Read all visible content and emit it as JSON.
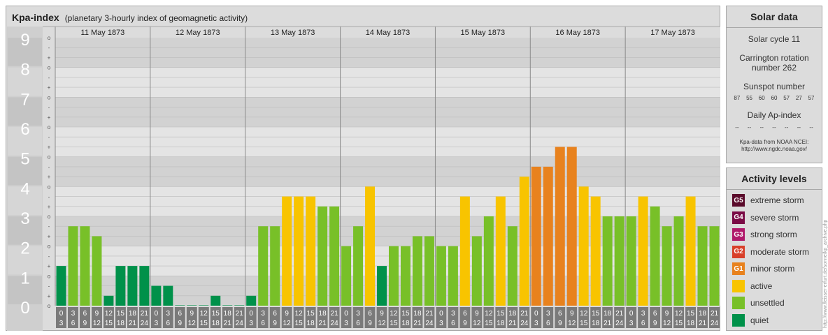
{
  "header": {
    "title": "Kpa-index",
    "subtitle": "(planetary 3-hourly index of geomagnetic activity)"
  },
  "chart_data": {
    "type": "bar",
    "title": "Kpa-index",
    "subtitle": "(planetary 3-hourly index of geomagnetic activity)",
    "y_ticks": [
      "0",
      "1",
      "2",
      "3",
      "4",
      "5",
      "6",
      "7",
      "8",
      "9"
    ],
    "y_minor_ticks": [
      "o",
      "+",
      "-"
    ],
    "ylim": [
      0,
      9
    ],
    "days": [
      "11 May 1873",
      "12 May 1873",
      "13 May 1873",
      "14 May 1873",
      "15 May 1873",
      "16 May 1873",
      "17 May 1873"
    ],
    "hour_starts": [
      "0",
      "3",
      "6",
      "9",
      "12",
      "15",
      "18",
      "21"
    ],
    "hour_ends": [
      "3",
      "6",
      "9",
      "12",
      "15",
      "18",
      "21",
      "24"
    ],
    "values": [
      1.333,
      2.667,
      2.667,
      2.333,
      0.333,
      1.333,
      1.333,
      1.333,
      0.667,
      0.667,
      0,
      0,
      0,
      0.333,
      0,
      0,
      0.333,
      2.667,
      2.667,
      3.667,
      3.667,
      3.667,
      3.333,
      3.333,
      2.0,
      2.667,
      4.0,
      1.333,
      2.0,
      2.0,
      2.333,
      2.333,
      2.0,
      2.0,
      3.667,
      2.333,
      3.0,
      3.667,
      2.667,
      4.333,
      4.667,
      4.667,
      5.333,
      5.333,
      4.0,
      3.667,
      3.0,
      3.0,
      3.0,
      3.667,
      3.333,
      2.667,
      3.0,
      3.667,
      2.667,
      2.667
    ],
    "grid": true,
    "color_rule": "quiet (<2) / unsettled / active / minor storm / moderate storm / strong / severe / extreme"
  },
  "solar": {
    "title": "Solar data",
    "cycle": "Solar cycle 11",
    "carrington_1": "Carrington rotation",
    "carrington_2": "number 262",
    "sunspot_label": "Sunspot number",
    "sunspots": [
      "87",
      "55",
      "60",
      "60",
      "57",
      "27",
      "57"
    ],
    "ap_label": "Daily Ap-index",
    "ap_values": [
      "--",
      "--",
      "--",
      "--",
      "--",
      "--",
      "--"
    ],
    "credit_1": "Kpa-data from NOAA NCEI:",
    "credit_2": "http://www.ngdc.noaa.gov/"
  },
  "levels": {
    "title": "Activity levels",
    "items": [
      {
        "badge": "G5",
        "label": "extreme storm",
        "color": "#5a0a2a"
      },
      {
        "badge": "G4",
        "label": "severe storm",
        "color": "#7a0a45"
      },
      {
        "badge": "G3",
        "label": "strong storm",
        "color": "#b0186a"
      },
      {
        "badge": "G2",
        "label": "moderate storm",
        "color": "#d8402a"
      },
      {
        "badge": "G1",
        "label": "minor storm",
        "color": "#e8821e"
      },
      {
        "badge": "",
        "label": "active",
        "color": "#f8c400"
      },
      {
        "badge": "",
        "label": "unsettled",
        "color": "#78c028"
      },
      {
        "badge": "",
        "label": "quiet",
        "color": "#00914a"
      }
    ]
  },
  "credit_vertical": "http://www.fleisser-erfurt.de/sonne/kp_archive.php",
  "colors": {
    "quiet": "#00914a",
    "unsettled": "#78c028",
    "active": "#f8c400",
    "minor": "#e8821e",
    "moderate": "#d8402a",
    "strong": "#b0186a",
    "severe": "#7a0a45",
    "extreme": "#5a0a2a"
  }
}
